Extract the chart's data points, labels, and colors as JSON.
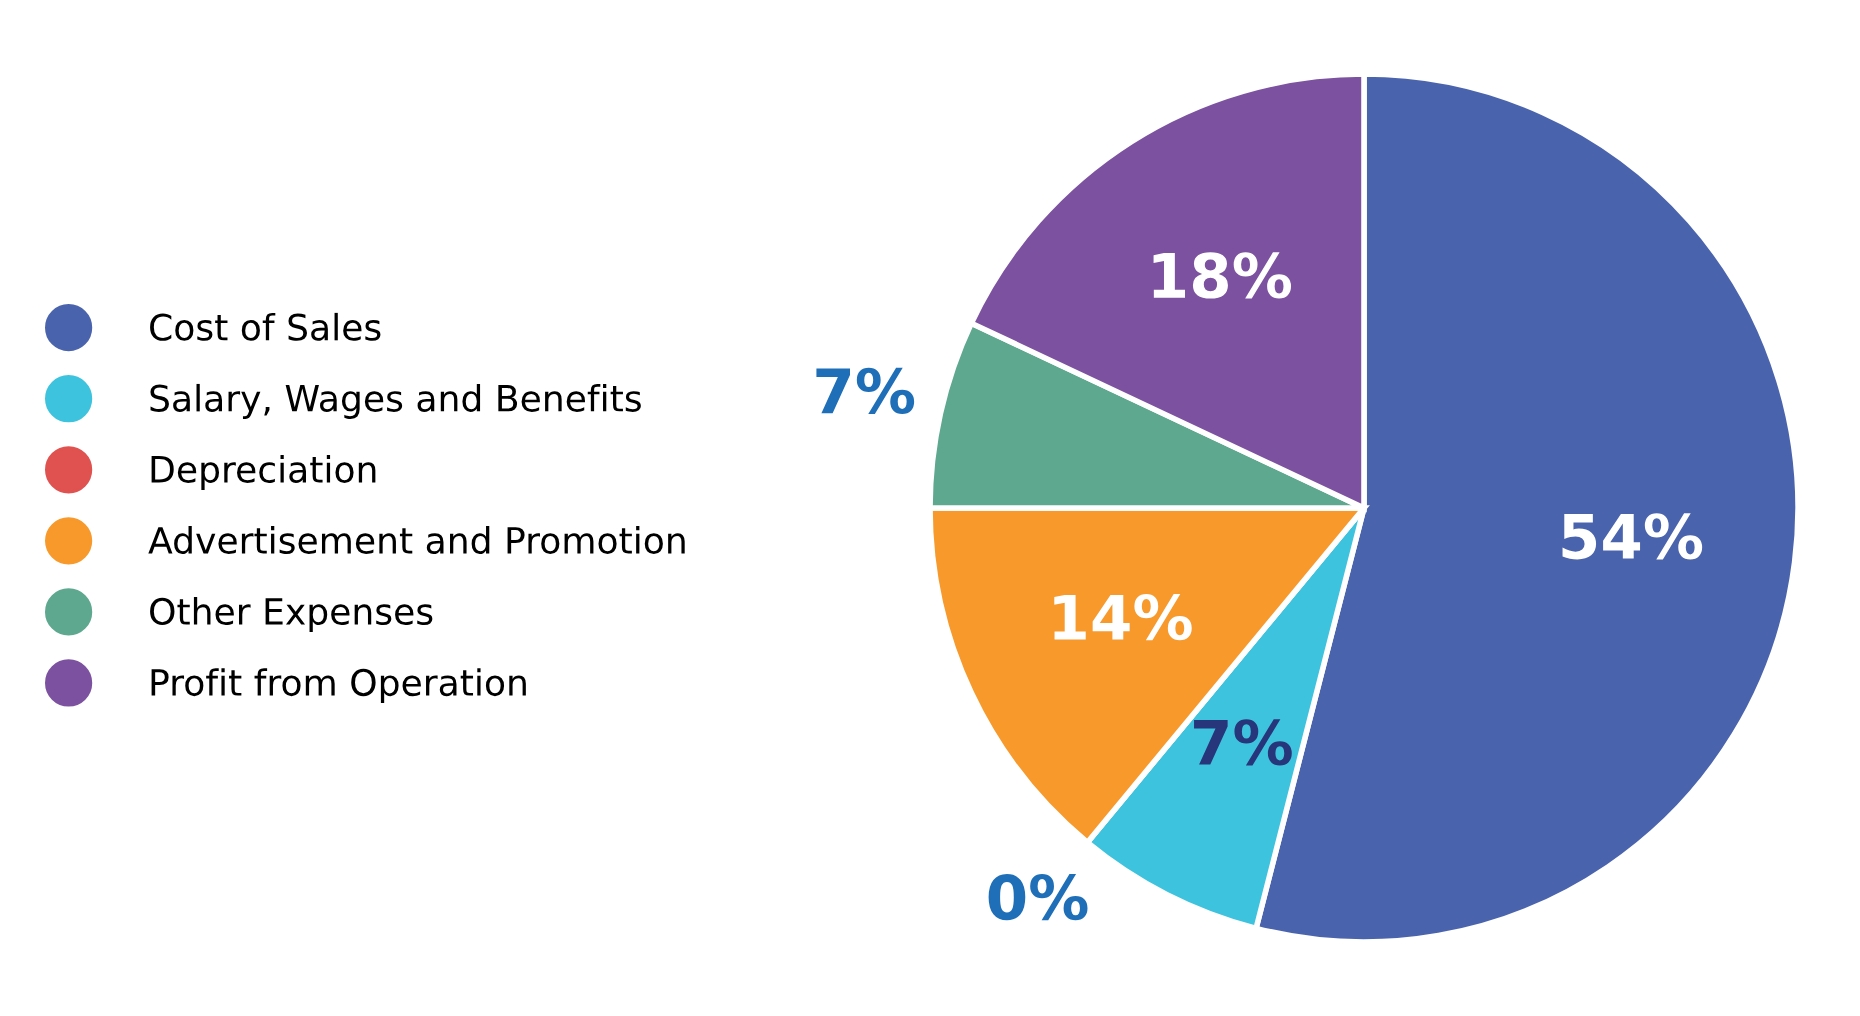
{
  "chart_data": {
    "type": "pie",
    "categories": [
      "Cost of Sales",
      "Salary, Wages and Benefits",
      "Depreciation",
      "Advertisement and Promotion",
      "Other Expenses",
      "Profit from Operation"
    ],
    "values": [
      54,
      7,
      0,
      14,
      7,
      18
    ],
    "colors": [
      "#4a63ad",
      "#3ec3de",
      "#e0524f",
      "#f7992b",
      "#5ea88f",
      "#7c52a0"
    ],
    "value_labels": [
      "54%",
      "7%",
      "0%",
      "14%",
      "7%",
      "18%"
    ],
    "legend": "left"
  }
}
